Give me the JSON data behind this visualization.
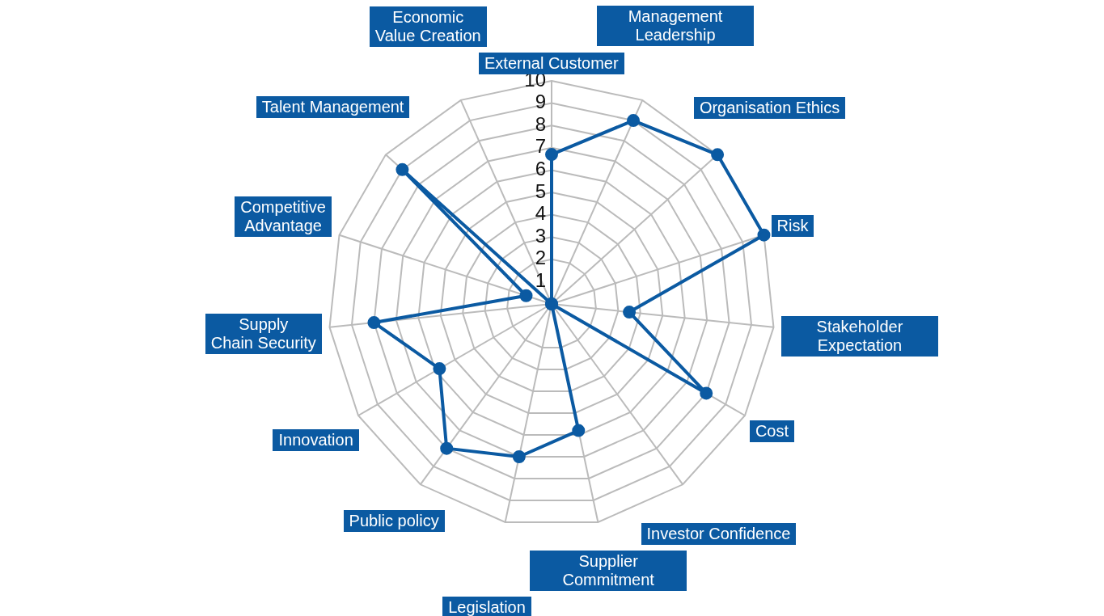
{
  "chart_data": {
    "type": "radar",
    "categories": [
      "External Customer",
      "Management Leadership",
      "Organisation Ethics",
      "Risk",
      "Stakeholder Expectation",
      "Cost",
      "Investor Confidence",
      "Supplier Commitment",
      "Legislation",
      "Public policy",
      "Innovation",
      "Supply\nChain Security",
      "Competitive\nAdvantage",
      "Talent Management",
      "Economic\nValue Creation"
    ],
    "series": [
      {
        "color": "#0b5aa2",
        "values": [
          6.7,
          9,
          10,
          10,
          3.5,
          8,
          0,
          5.8,
          7,
          8,
          5.8,
          8,
          1.2,
          9,
          0
        ]
      }
    ],
    "ylim": [
      0,
      10
    ],
    "yticks": [
      1,
      2,
      3,
      4,
      5,
      6,
      7,
      8,
      9,
      10
    ],
    "grid": true,
    "legend": false,
    "marker": "circle"
  }
}
